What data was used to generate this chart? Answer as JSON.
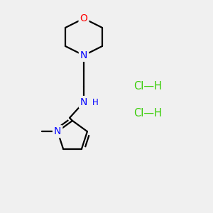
{
  "background_color": "#f0f0f0",
  "atom_color_N": "#0000ff",
  "atom_color_O": "#ff0000",
  "atom_color_HCl": "#33cc00",
  "bond_color": "#000000",
  "line_width": 1.6,
  "figsize": [
    3.0,
    3.0
  ],
  "dpi": 100,
  "HCl_label1": "Cl—H",
  "HCl_label2": "Cl—H",
  "NH_label": "H",
  "N_label": "N",
  "O_label": "O"
}
